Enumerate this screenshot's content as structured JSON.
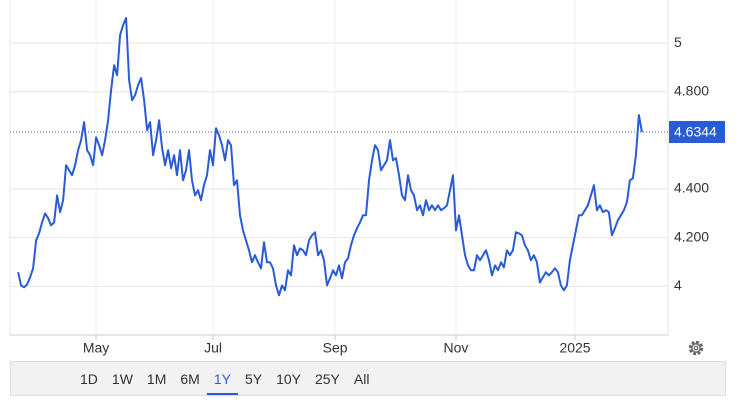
{
  "chart_data": {
    "type": "line",
    "series": [
      {
        "color": "#2a5bd7",
        "values": [
          4.058,
          4.004,
          3.996,
          4.008,
          4.037,
          4.074,
          4.189,
          4.218,
          4.263,
          4.3,
          4.28,
          4.251,
          4.263,
          4.374,
          4.305,
          4.354,
          4.498,
          4.477,
          4.457,
          4.498,
          4.56,
          4.601,
          4.675,
          4.56,
          4.539,
          4.498,
          4.613,
          4.58,
          4.539,
          4.601,
          4.683,
          4.807,
          4.909,
          4.868,
          5.033,
          5.074,
          5.103,
          4.848,
          4.765,
          4.786,
          4.827,
          4.856,
          4.765,
          4.642,
          4.675,
          4.539,
          4.601,
          4.683,
          4.568,
          4.498,
          4.56,
          4.486,
          4.539,
          4.457,
          4.56,
          4.436,
          4.477,
          4.56,
          4.436,
          4.374,
          4.395,
          4.354,
          4.416,
          4.457,
          4.56,
          4.498,
          4.65,
          4.621,
          4.58,
          4.518,
          4.601,
          4.58,
          4.416,
          4.436,
          4.292,
          4.23,
          4.189,
          4.148,
          4.099,
          4.128,
          4.099,
          4.074,
          4.181,
          4.099,
          4.099,
          4.074,
          4.004,
          3.963,
          4.004,
          3.984,
          4.066,
          4.045,
          4.169,
          4.128,
          4.156,
          4.148,
          4.128,
          4.189,
          4.21,
          4.222,
          4.128,
          4.148,
          4.107,
          4.004,
          4.033,
          4.066,
          4.045,
          4.086,
          4.033,
          4.099,
          4.115,
          4.169,
          4.21,
          4.239,
          4.263,
          4.292,
          4.292,
          4.436,
          4.518,
          4.58,
          4.56,
          4.477,
          4.498,
          4.518,
          4.601,
          4.518,
          4.527,
          4.457,
          4.374,
          4.354,
          4.457,
          4.395,
          4.374,
          4.313,
          4.333,
          4.292,
          4.354,
          4.313,
          4.333,
          4.313,
          4.333,
          4.313,
          4.321,
          4.333,
          4.395,
          4.457,
          4.23,
          4.292,
          4.21,
          4.128,
          4.086,
          4.066,
          4.066,
          4.128,
          4.107,
          4.128,
          4.148,
          4.107,
          4.045,
          4.086,
          4.066,
          4.099,
          4.078,
          4.148,
          4.128,
          4.148,
          4.222,
          4.218,
          4.21,
          4.169,
          4.148,
          4.107,
          4.128,
          4.099,
          4.016,
          4.037,
          4.058,
          4.045,
          4.058,
          4.074,
          4.058,
          4.004,
          3.984,
          4.004,
          4.107,
          4.169,
          4.23,
          4.292,
          4.292,
          4.313,
          4.333,
          4.374,
          4.416,
          4.313,
          4.333,
          4.305,
          4.313,
          4.305,
          4.21,
          4.239,
          4.272,
          4.292,
          4.313,
          4.346,
          4.436,
          4.444,
          4.539,
          4.704,
          4.6344
        ]
      }
    ],
    "current_value": 4.6344,
    "xlim": [
      -2.7,
      216.7
    ],
    "xticks": [
      {
        "value": 26,
        "label": "May"
      },
      {
        "value": 65,
        "label": "Jul"
      },
      {
        "value": 105.7,
        "label": "Sep"
      },
      {
        "value": 146,
        "label": "Nov"
      },
      {
        "value": 185.7,
        "label": "2025"
      }
    ],
    "ylim": [
      3.8,
      5.177
    ],
    "yticks": [
      4,
      {
        "value": 4.2,
        "label": "4.200"
      },
      {
        "value": 4.4,
        "label": "4.400"
      },
      {
        "value": 4.8,
        "label": "4.800"
      },
      5
    ],
    "grid": true,
    "range_buttons": [
      "1D",
      "1W",
      "1M",
      "6M",
      "1Y",
      "5Y",
      "10Y",
      "25Y",
      "All"
    ],
    "selected_range": "1Y"
  }
}
